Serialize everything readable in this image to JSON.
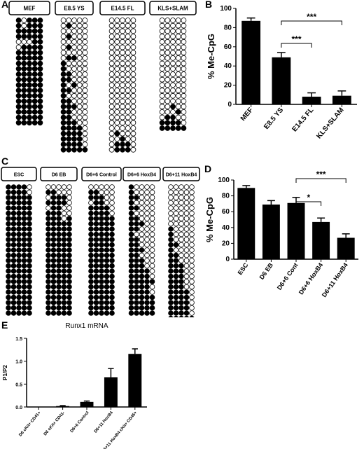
{
  "panel_labels": {
    "a": "A",
    "b": "B",
    "c": "C",
    "d": "D",
    "e": "E"
  },
  "meth_a": {
    "groups": [
      {
        "label": "MEF",
        "cols": 5,
        "rows": [
          "10111",
          "10111",
          "11111",
          "11111",
          "00011",
          "01111",
          "11111",
          "11111",
          "11111",
          "11111",
          "11111",
          "11111",
          "11111",
          "11111",
          "11111",
          "11111",
          "11111",
          "11111",
          "11111",
          "11111"
        ]
      },
      {
        "label": "E8.5 YS",
        "cols": 5,
        "rows": [
          "00000",
          "01000",
          "00000",
          "01000",
          "00000",
          "01000",
          "00000",
          "01100",
          "10000",
          "10000",
          "11000",
          "11000",
          "10100",
          "11000",
          "10000",
          "11000",
          "11100",
          "11000",
          "11000",
          "11100",
          "11110",
          "11110",
          "11110",
          "11110",
          "11111"
        ]
      },
      {
        "label": "E14.5 FL",
        "cols": 5,
        "rows": [
          "00000",
          "00000",
          "00000",
          "00000",
          "00000",
          "00000",
          "00000",
          "00000",
          "00000",
          "00000",
          "00000",
          "00000",
          "00000",
          "00000",
          "00000",
          "00000",
          "00000",
          "00000",
          "00000",
          "00000",
          "00000",
          "01000",
          "00100",
          "01110",
          "01110"
        ]
      },
      {
        "label": "KLS+SLAM",
        "cols": 5,
        "rows": [
          "00000",
          "00000",
          "00000",
          "00000",
          "00000",
          "00000",
          "00000",
          "00000",
          "00000",
          "00000",
          "00000",
          "00000",
          "00000",
          "00000",
          "00000",
          "00000",
          "00100",
          "00010",
          "01100",
          "11110",
          "11111"
        ]
      }
    ]
  },
  "meth_c": {
    "groups": [
      {
        "label": "ESC",
        "cols": 5,
        "rows": [
          "11110",
          "11110",
          "11111",
          "11111",
          "11111",
          "11111",
          "11111",
          "11111",
          "11111",
          "11111",
          "11111",
          "11111",
          "11111",
          "11111",
          "11111",
          "11111",
          "11111",
          "11111",
          "11111",
          "11111",
          "11111",
          "11111",
          "11111",
          "11111",
          "11111"
        ]
      },
      {
        "label": "D6 EB",
        "cols": 5,
        "rows": [
          "00000",
          "11000",
          "01110",
          "11110",
          "01100",
          "11100",
          "11101",
          "11111",
          "11111",
          "11111",
          "11111",
          "11111",
          "11111",
          "11111",
          "11111",
          "11111",
          "11111",
          "11111",
          "11111",
          "11111",
          "11111",
          "11111",
          "11111",
          "11111",
          "11111"
        ]
      },
      {
        "label": "D6+6 Control",
        "cols": 5,
        "rows": [
          "00000",
          "11000",
          "11100",
          "01100",
          "11110",
          "11110",
          "11111",
          "11111",
          "11111",
          "11111",
          "11111",
          "11111",
          "11111",
          "11111",
          "11111",
          "11111",
          "11111",
          "11111",
          "11111",
          "11111",
          "11111",
          "11111",
          "11111",
          "11111",
          "11111"
        ]
      },
      {
        "label": "D6+6 HoxB4",
        "cols": 5,
        "rows": [
          "10000",
          "10000",
          "11000",
          "10000",
          "11000",
          "10000",
          "11000",
          "11100",
          "11000",
          "10000",
          "11000",
          "11000",
          "11100",
          "11000",
          "11100",
          "11100",
          "11110",
          "11110",
          "11111",
          "11110",
          "11110",
          "11111",
          "11111",
          "11111",
          "11111"
        ]
      },
      {
        "label": "D6+11 HoxB4",
        "cols": 5,
        "rows": [
          "00000",
          "00000",
          "00000",
          "00000",
          "00000",
          "00000",
          "00000",
          "00000",
          "10000",
          "10000",
          "10000",
          "11000",
          "10000",
          "11000",
          "11000",
          "11100",
          "11100",
          "11100",
          "11100",
          "11100",
          "11110",
          "11110",
          "11110",
          "11110",
          "11110",
          "11111",
          "11111"
        ]
      }
    ]
  },
  "chart_b": {
    "type": "bar",
    "ylabel": "% Me-CpG",
    "ylim": [
      0,
      100
    ],
    "yticks": [
      "0",
      "20",
      "40",
      "60",
      "80",
      "100"
    ],
    "categories": [
      "MEF",
      "E8.5 YS",
      "E14.5 FL",
      "KLS+SLAM"
    ],
    "values": [
      87,
      49,
      8,
      9
    ],
    "errors": [
      3,
      5,
      4,
      5
    ],
    "significance": [
      {
        "from": 1,
        "to": 3,
        "label": "***"
      },
      {
        "from": 1,
        "to": 2,
        "label": "***"
      }
    ]
  },
  "chart_d": {
    "type": "bar",
    "ylabel": "% Me-CpG",
    "ylim": [
      0,
      100
    ],
    "yticks": [
      "0",
      "20",
      "40",
      "60",
      "80",
      "100"
    ],
    "categories": [
      "ESC",
      "D6 EB",
      "D6+6 Cont",
      "D6+6 HoxB4",
      "D6+11 HoxB4"
    ],
    "values": [
      90,
      69,
      71,
      47,
      27
    ],
    "errors": [
      3,
      5,
      7,
      5,
      5
    ],
    "significance": [
      {
        "from": 2,
        "to": 4,
        "label": "***"
      },
      {
        "from": 2,
        "to": 3,
        "label": "*"
      }
    ]
  },
  "chart_e": {
    "type": "bar",
    "title": "Runx1 mRNA",
    "ylabel": "P1/P2",
    "ylim": [
      0,
      1.5
    ],
    "yticks": [
      "0.0",
      "0.5",
      "1.0",
      "1.5"
    ],
    "categories": [
      "D6 cKit+ CD41+",
      "D6 cKit+ CD41-",
      "D6+6 Control",
      "D6+11 HoxB4",
      "D6+11 HoxB4 cKit+ CD45+"
    ],
    "values": [
      0.0,
      0.02,
      0.11,
      0.65,
      1.16
    ],
    "errors": [
      0.0,
      0.01,
      0.02,
      0.19,
      0.11
    ]
  }
}
